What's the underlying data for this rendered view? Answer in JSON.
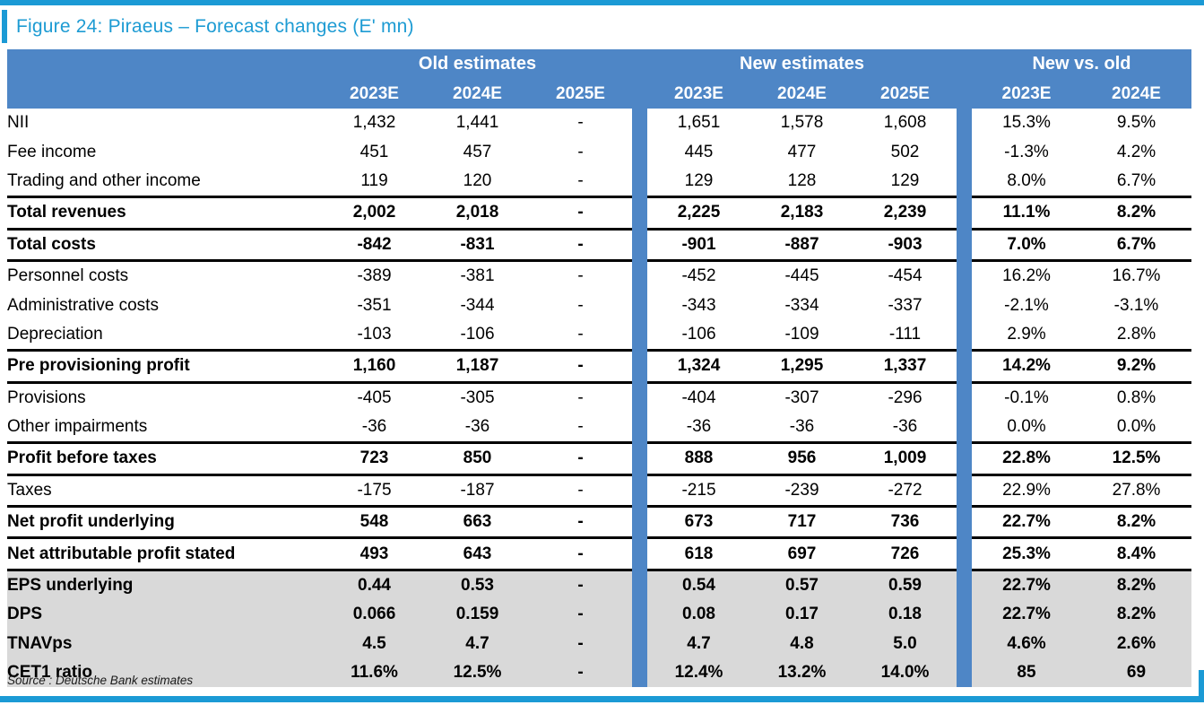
{
  "figure": {
    "title": "Figure 24: Piraeus – Forecast changes (E' mn)",
    "source": "Source : Deutsche Bank estimates"
  },
  "colors": {
    "accent_cyan": "#1b9ad5",
    "header_blue": "#4e86c6",
    "separator_light_blue": "#bfd5ee",
    "gray_row": "#d9d9d9",
    "rule_black": "#000000"
  },
  "table": {
    "groups": [
      {
        "label": "Old estimates",
        "years": [
          "2023E",
          "2024E",
          "2025E"
        ]
      },
      {
        "label": "New estimates",
        "years": [
          "2023E",
          "2024E",
          "2025E"
        ]
      },
      {
        "label": "New vs. old",
        "years": [
          "2023E",
          "2024E"
        ]
      }
    ],
    "rows": [
      {
        "label": "NII",
        "bold": false,
        "gray": false,
        "rule": false,
        "old": [
          "1,432",
          "1,441",
          "-"
        ],
        "new": [
          "1,651",
          "1,578",
          "1,608"
        ],
        "delta": [
          "15.3%",
          "9.5%"
        ]
      },
      {
        "label": "Fee income",
        "bold": false,
        "gray": false,
        "rule": false,
        "old": [
          "451",
          "457",
          "-"
        ],
        "new": [
          "445",
          "477",
          "502"
        ],
        "delta": [
          "-1.3%",
          "4.2%"
        ]
      },
      {
        "label": "Trading and other income",
        "bold": false,
        "gray": false,
        "rule": false,
        "old": [
          "119",
          "120",
          "-"
        ],
        "new": [
          "129",
          "128",
          "129"
        ],
        "delta": [
          "8.0%",
          "6.7%"
        ]
      },
      {
        "label": "Total revenues",
        "bold": true,
        "gray": false,
        "rule": true,
        "old": [
          "2,002",
          "2,018",
          "-"
        ],
        "new": [
          "2,225",
          "2,183",
          "2,239"
        ],
        "delta": [
          "11.1%",
          "8.2%"
        ]
      },
      {
        "label": "Total costs",
        "bold": true,
        "gray": false,
        "rule": true,
        "old": [
          "-842",
          "-831",
          "-"
        ],
        "new": [
          "-901",
          "-887",
          "-903"
        ],
        "delta": [
          "7.0%",
          "6.7%"
        ]
      },
      {
        "label": "Personnel costs",
        "bold": false,
        "gray": false,
        "rule": true,
        "old": [
          "-389",
          "-381",
          "-"
        ],
        "new": [
          "-452",
          "-445",
          "-454"
        ],
        "delta": [
          "16.2%",
          "16.7%"
        ]
      },
      {
        "label": "Administrative costs",
        "bold": false,
        "gray": false,
        "rule": false,
        "old": [
          "-351",
          "-344",
          "-"
        ],
        "new": [
          "-343",
          "-334",
          "-337"
        ],
        "delta": [
          "-2.1%",
          "-3.1%"
        ]
      },
      {
        "label": "Depreciation",
        "bold": false,
        "gray": false,
        "rule": false,
        "old": [
          "-103",
          "-106",
          "-"
        ],
        "new": [
          "-106",
          "-109",
          "-111"
        ],
        "delta": [
          "2.9%",
          "2.8%"
        ]
      },
      {
        "label": "Pre provisioning profit",
        "bold": true,
        "gray": false,
        "rule": true,
        "old": [
          "1,160",
          "1,187",
          "-"
        ],
        "new": [
          "1,324",
          "1,295",
          "1,337"
        ],
        "delta": [
          "14.2%",
          "9.2%"
        ]
      },
      {
        "label": "Provisions",
        "bold": false,
        "gray": false,
        "rule": true,
        "old": [
          "-405",
          "-305",
          "-"
        ],
        "new": [
          "-404",
          "-307",
          "-296"
        ],
        "delta": [
          "-0.1%",
          "0.8%"
        ]
      },
      {
        "label": "Other impairments",
        "bold": false,
        "gray": false,
        "rule": false,
        "old": [
          "-36",
          "-36",
          "-"
        ],
        "new": [
          "-36",
          "-36",
          "-36"
        ],
        "delta": [
          "0.0%",
          "0.0%"
        ]
      },
      {
        "label": "Profit before taxes",
        "bold": true,
        "gray": false,
        "rule": true,
        "old": [
          "723",
          "850",
          "-"
        ],
        "new": [
          "888",
          "956",
          "1,009"
        ],
        "delta": [
          "22.8%",
          "12.5%"
        ]
      },
      {
        "label": "Taxes",
        "bold": false,
        "gray": false,
        "rule": true,
        "old": [
          "-175",
          "-187",
          "-"
        ],
        "new": [
          "-215",
          "-239",
          "-272"
        ],
        "delta": [
          "22.9%",
          "27.8%"
        ]
      },
      {
        "label": "Net profit underlying",
        "bold": true,
        "gray": false,
        "rule": true,
        "old": [
          "548",
          "663",
          "-"
        ],
        "new": [
          "673",
          "717",
          "736"
        ],
        "delta": [
          "22.7%",
          "8.2%"
        ]
      },
      {
        "label": "Net attributable profit stated",
        "bold": true,
        "gray": false,
        "rule": true,
        "old": [
          "493",
          "643",
          "-"
        ],
        "new": [
          "618",
          "697",
          "726"
        ],
        "delta": [
          "25.3%",
          "8.4%"
        ]
      },
      {
        "label": "EPS underlying",
        "bold": true,
        "gray": true,
        "rule": true,
        "old": [
          "0.44",
          "0.53",
          "-"
        ],
        "new": [
          "0.54",
          "0.57",
          "0.59"
        ],
        "delta": [
          "22.7%",
          "8.2%"
        ]
      },
      {
        "label": "DPS",
        "bold": true,
        "gray": true,
        "rule": false,
        "old": [
          "0.066",
          "0.159",
          "-"
        ],
        "new": [
          "0.08",
          "0.17",
          "0.18"
        ],
        "delta": [
          "22.7%",
          "8.2%"
        ]
      },
      {
        "label": "TNAVps",
        "bold": true,
        "gray": true,
        "rule": false,
        "old": [
          "4.5",
          "4.7",
          "-"
        ],
        "new": [
          "4.7",
          "4.8",
          "5.0"
        ],
        "delta": [
          "4.6%",
          "2.6%"
        ]
      },
      {
        "label": "CET1 ratio",
        "bold": true,
        "gray": true,
        "rule": false,
        "old": [
          "11.6%",
          "12.5%",
          "-"
        ],
        "new": [
          "12.4%",
          "13.2%",
          "14.0%"
        ],
        "delta": [
          "85",
          "69"
        ]
      }
    ]
  }
}
